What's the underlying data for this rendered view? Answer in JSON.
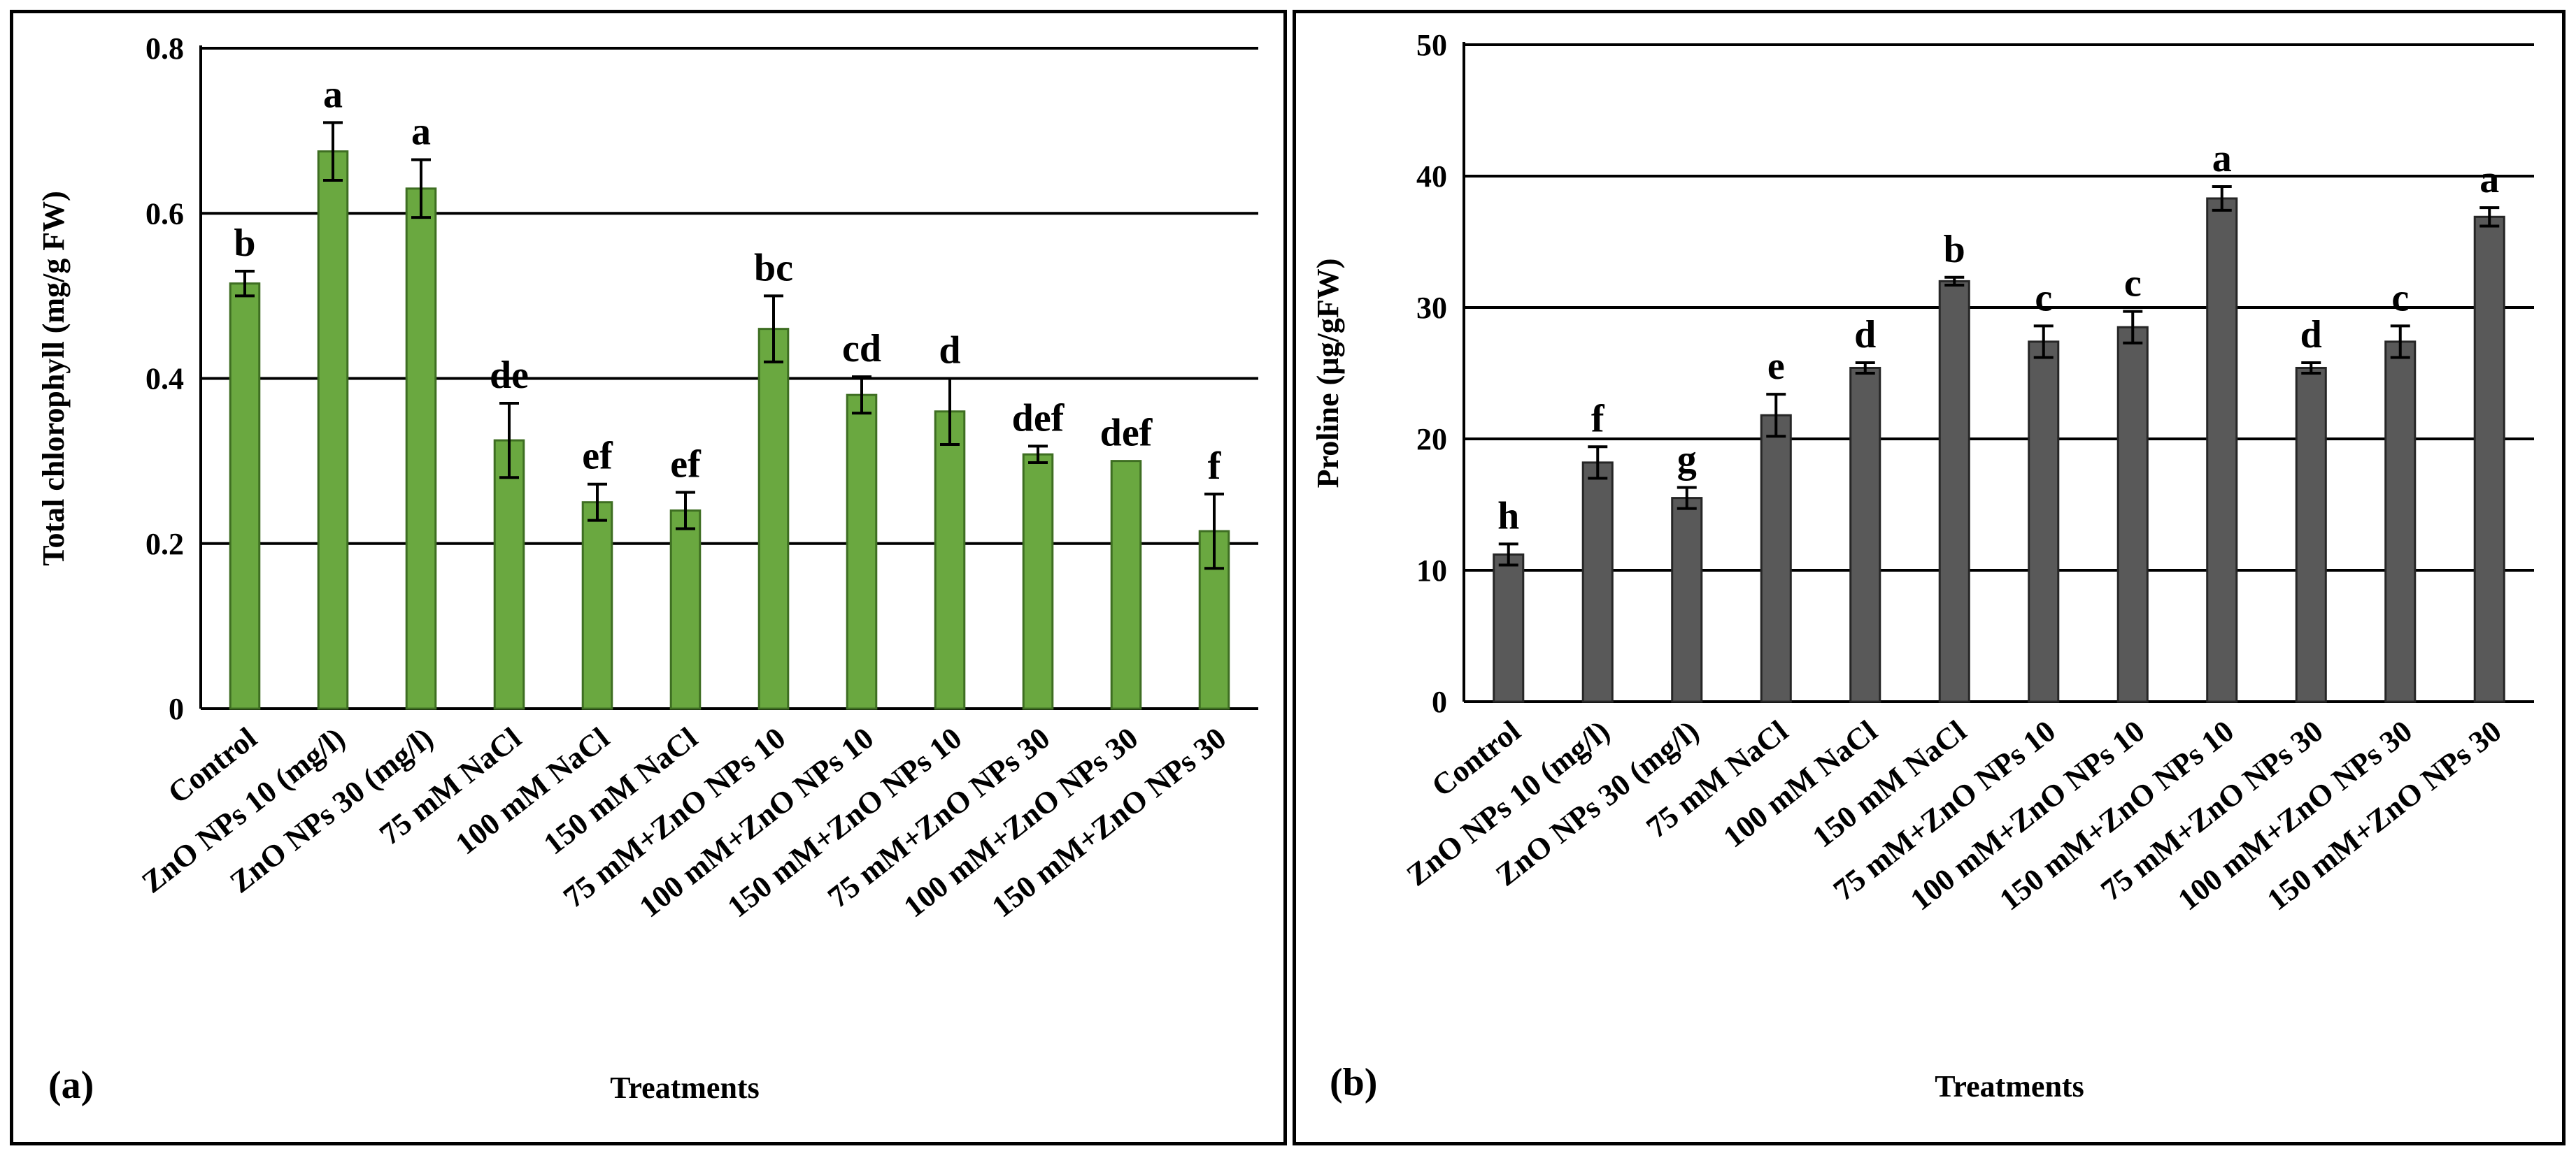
{
  "colors": {
    "panel_a_bar": "#6aa840",
    "panel_a_bar_stroke": "#3e6e22",
    "panel_b_bar": "#595959",
    "panel_b_bar_stroke": "#262626"
  },
  "chart_data": [
    {
      "type": "bar",
      "panel_label": "(a)",
      "title": "",
      "xlabel": "Treatments",
      "ylabel": "Total  chlorophyll  (mg/g FW)",
      "ylim": [
        0,
        0.8
      ],
      "yticks": [
        0,
        0.2,
        0.4,
        0.6,
        0.8
      ],
      "ytick_labels": [
        "0",
        "0.2",
        "0.4",
        "0.6",
        "0.8"
      ],
      "grid": true,
      "categories": [
        "Control",
        "ZnO NPs 10 (mg/l)",
        "ZnO NPs 30 (mg/l)",
        "75 mM NaCl",
        "100 mM NaCl",
        "150 mM NaCl",
        "75 mM+ZnO NPs 10",
        "100 mM+ZnO NPs 10",
        "150 mM+ZnO NPs 10",
        "75 mM+ZnO NPs 30",
        "100 mM+ZnO NPs 30",
        "150 mM+ZnO NPs 30"
      ],
      "values": [
        0.515,
        0.675,
        0.63,
        0.325,
        0.25,
        0.24,
        0.46,
        0.38,
        0.36,
        0.308,
        0.3,
        0.215
      ],
      "errors": [
        0.015,
        0.035,
        0.035,
        0.045,
        0.022,
        0.022,
        0.04,
        0.022,
        0.04,
        0.01,
        0.0,
        0.045
      ],
      "letters": [
        "b",
        "a",
        "a",
        "de",
        "ef",
        "ef",
        "bc",
        "cd",
        "d",
        "def",
        "def",
        "f"
      ]
    },
    {
      "type": "bar",
      "panel_label": "(b)",
      "title": "",
      "xlabel": "Treatments",
      "ylabel": "Proline  (µg/gFW)",
      "ylim": [
        0,
        50
      ],
      "yticks": [
        0,
        10,
        20,
        30,
        40,
        50
      ],
      "ytick_labels": [
        "0",
        "10",
        "20",
        "30",
        "40",
        "50"
      ],
      "grid": true,
      "categories": [
        "Control",
        "ZnO NPs 10 (mg/l)",
        "ZnO NPs 30 (mg/l)",
        "75 mM NaCl",
        "100 mM NaCl",
        "150 mM NaCl",
        "75 mM+ZnO NPs 10",
        "100 mM+ZnO NPs 10",
        "150 mM+ZnO NPs 10",
        "75 mM+ZnO NPs 30",
        "100 mM+ZnO NPs 30",
        "150 mM+ZnO NPs 30"
      ],
      "values": [
        11.2,
        18.2,
        15.5,
        21.8,
        25.4,
        32.0,
        27.4,
        28.5,
        38.3,
        25.4,
        27.4,
        36.9
      ],
      "errors": [
        0.8,
        1.2,
        0.8,
        1.6,
        0.4,
        0.3,
        1.2,
        1.2,
        0.9,
        0.4,
        1.2,
        0.7
      ],
      "letters": [
        "h",
        "f",
        "g",
        "e",
        "d",
        "b",
        "c",
        "c",
        "a",
        "d",
        "c",
        "a"
      ]
    }
  ]
}
